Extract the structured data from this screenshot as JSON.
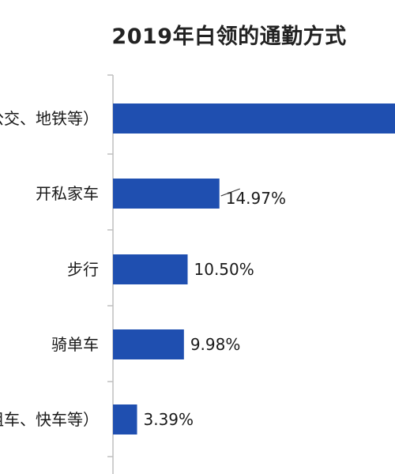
{
  "chart_data": {
    "type": "bar",
    "orientation": "horizontal",
    "title": "2019年白领的通勤方式",
    "categories": [
      "（公交、地铁等）",
      "开私家车",
      "步行",
      "骑单车",
      "（出租车、快车等）"
    ],
    "values": [
      null,
      14.97,
      10.5,
      9.98,
      3.39
    ],
    "value_labels": [
      "",
      "14.97%",
      "10.50%",
      "9.98%",
      "3.39%"
    ],
    "bar_color": "#1f4fb0",
    "axis_color": "#bfbfbf",
    "grid": false,
    "legend": "none"
  }
}
